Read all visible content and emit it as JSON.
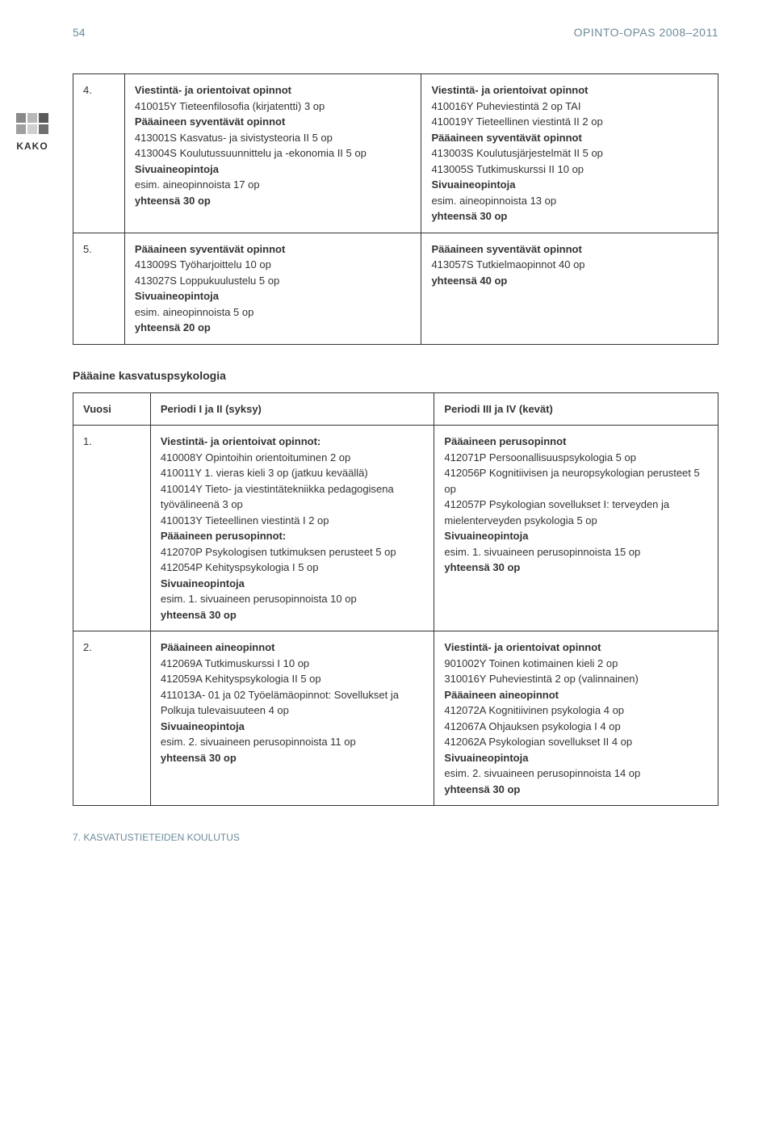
{
  "header": {
    "page_number": "54",
    "guide_title": "OPINTO-OPAS 2008–2011"
  },
  "sidebar": {
    "label": "KAKO"
  },
  "table1": {
    "rows": [
      {
        "num": "4.",
        "left": {
          "h1": "Viestintä- ja orientoivat opinnot",
          "l1": "410015Y Tieteenfilosofia (kirjatentti) 3 op",
          "h2": "Pääaineen syventävät opinnot",
          "l2": "413001S Kasvatus- ja sivistysteoria II 5 op",
          "l3": "413004S Koulutussuunnittelu ja -ekonomia II 5 op",
          "h3": "Sivuaineopintoja",
          "l4": "esim. aineopinnoista 17 op",
          "h4": "yhteensä 30 op"
        },
        "right": {
          "h1": "Viestintä- ja orientoivat opinnot",
          "l1": "410016Y Puheviestintä 2 op TAI",
          "l2": "410019Y Tieteellinen viestintä II 2 op",
          "h2": "Pääaineen syventävät opinnot",
          "l3": "413003S Koulutusjärjestelmät II 5 op",
          "l4": "413005S Tutkimuskurssi II 10 op",
          "h3": "Sivuaineopintoja",
          "l5": "esim. aineopinnoista 13 op",
          "h4": "yhteensä 30 op"
        }
      },
      {
        "num": "5.",
        "left": {
          "h1": "Pääaineen syventävät opinnot",
          "l1": "413009S Työharjoittelu 10 op",
          "l2": "413027S Loppukuulustelu 5 op",
          "h2": "Sivuaineopintoja",
          "l3": "esim. aineopinnoista 5 op",
          "h3": "yhteensä 20 op"
        },
        "right": {
          "h1": "Pääaineen syventävät opinnot",
          "l1": "413057S Tutkielmaopinnot 40 op",
          "h2": "yhteensä 40 op"
        }
      }
    ]
  },
  "section2": {
    "title": "Pääaine kasvatuspsykologia",
    "header": {
      "c1": "Vuosi",
      "c2": "Periodi I ja II (syksy)",
      "c3": "Periodi III ja IV (kevät)"
    },
    "rows": [
      {
        "num": "1.",
        "left": {
          "h1": "Viestintä- ja orientoivat opinnot:",
          "l1": "410008Y Opintoihin orientoituminen 2 op",
          "l2": "410011Y 1. vieras kieli 3 op (jatkuu keväällä)",
          "l3": "410014Y Tieto- ja viestintätekniikka pedagogisena työvälineenä 3 op",
          "l4": "410013Y Tieteellinen viestintä I 2 op",
          "h2": "Pääaineen perusopinnot:",
          "l5": "412070P Psykologisen tutkimuksen perusteet 5 op",
          "l6": "412054P Kehityspsykologia I 5 op",
          "h3": "Sivuaineopintoja",
          "l7": "esim. 1. sivuaineen perusopinnoista 10 op",
          "h4": "yhteensä 30 op"
        },
        "right": {
          "h1": "Pääaineen perusopinnot",
          "l1": "412071P Persoonallisuuspsykologia 5 op",
          "l2": "412056P Kognitiivisen ja neuropsykologian perusteet 5 op",
          "l3": "412057P Psykologian sovellukset I: terveyden ja mielenterveyden psykologia 5 op",
          "h2": "Sivuaineopintoja",
          "l4": "esim. 1. sivuaineen perusopinnoista 15 op",
          "h3": "yhteensä 30 op"
        }
      },
      {
        "num": "2.",
        "left": {
          "h1": "Pääaineen aineopinnot",
          "l1": "412069A Tutkimuskurssi I 10 op",
          "l2": "412059A Kehityspsykologia II 5 op",
          "l3": "411013A- 01 ja 02 Työelämäopinnot: Sovellukset ja Polkuja tulevaisuuteen 4 op",
          "h2": "Sivuaineopintoja",
          "l4": "esim. 2. sivuaineen perusopinnoista 11 op",
          "h3": "yhteensä 30 op"
        },
        "right": {
          "h1": "Viestintä- ja orientoivat opinnot",
          "l1": "901002Y Toinen kotimainen kieli 2 op",
          "l2": "310016Y Puheviestintä 2 op (valinnainen)",
          "h2": "Pääaineen aineopinnot",
          "l3": "412072A Kognitiivinen psykologia 4 op",
          "l4": "412067A Ohjauksen psykologia I 4 op",
          "l5": "412062A Psykologian sovellukset II 4 op",
          "h3": "Sivuaineopintoja",
          "l6": "esim. 2. sivuaineen perusopinnoista 14 op",
          "h4": "yhteensä 30 op"
        }
      }
    ]
  },
  "footer": {
    "text": "7. KASVATUSTIETEIDEN KOULUTUS"
  }
}
